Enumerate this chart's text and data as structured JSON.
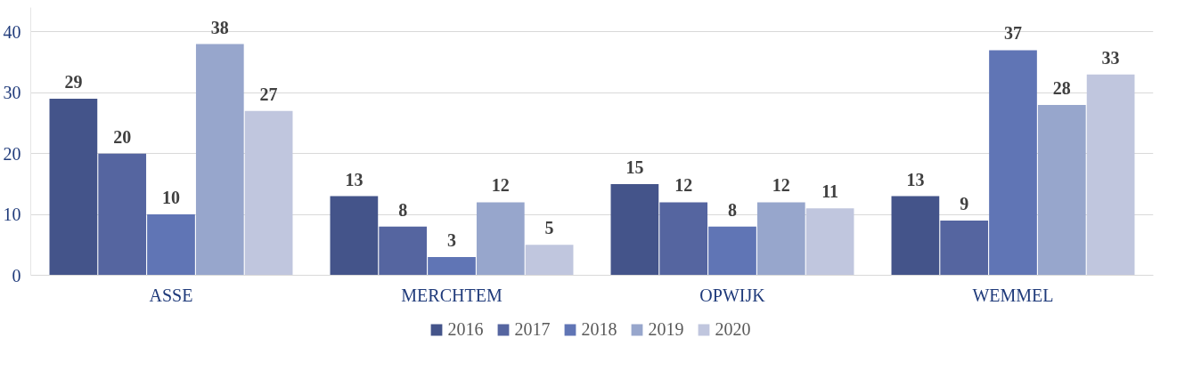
{
  "chart_data": {
    "type": "bar",
    "categories": [
      "ASSE",
      "MERCHTEM",
      "OPWIJK",
      "WEMMEL"
    ],
    "series": [
      {
        "name": "2016",
        "color": "#44548a",
        "values": [
          29,
          13,
          15,
          13
        ]
      },
      {
        "name": "2017",
        "color": "#5565a0",
        "values": [
          20,
          8,
          12,
          9
        ]
      },
      {
        "name": "2018",
        "color": "#6075b5",
        "values": [
          10,
          3,
          8,
          37
        ]
      },
      {
        "name": "2019",
        "color": "#97a6cc",
        "values": [
          38,
          12,
          12,
          28
        ]
      },
      {
        "name": "2020",
        "color": "#c0c6de",
        "values": [
          27,
          5,
          11,
          33
        ]
      }
    ],
    "ylim": [
      0,
      44
    ],
    "yticks": [
      0,
      10,
      20,
      30,
      40
    ],
    "grid": "y",
    "legend": "bottom",
    "data_labels": true
  }
}
